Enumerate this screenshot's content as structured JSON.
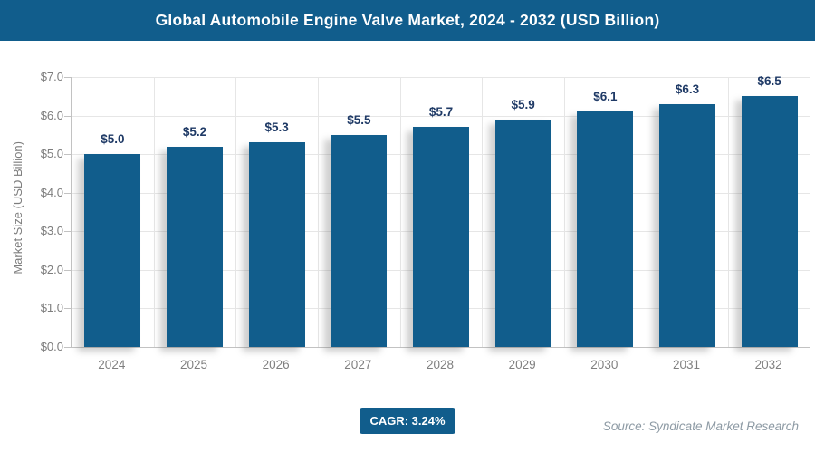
{
  "header": {
    "title": "Global Automobile Engine Valve Market, 2024 - 2032 (USD Billion)"
  },
  "chart_data": {
    "type": "bar",
    "title": "Global Automobile Engine Valve Market, 2024 - 2032 (USD Billion)",
    "categories": [
      "2024",
      "2025",
      "2026",
      "2027",
      "2028",
      "2029",
      "2030",
      "2031",
      "2032"
    ],
    "values": [
      5.0,
      5.2,
      5.3,
      5.5,
      5.7,
      5.9,
      6.1,
      6.3,
      6.5
    ],
    "data_labels": [
      "$5.0",
      "$5.2",
      "$5.3",
      "$5.5",
      "$5.7",
      "$5.9",
      "$6.1",
      "$6.3",
      "$6.5"
    ],
    "xlabel": "",
    "ylabel": "Market Size (USD Billion)",
    "ylim": [
      0,
      7
    ],
    "ytick_labels_top_down": [
      "$7.0",
      "$6.0",
      "$5.0",
      "$4.0",
      "$3.0",
      "$2.0",
      "$1.0",
      "$0.0"
    ],
    "grid": true,
    "legend_position": "none",
    "bar_color": "#115d8c"
  },
  "footer": {
    "cagr_label": "CAGR: 3.24%",
    "source": "Source: Syndicate Market Research"
  },
  "colors": {
    "header_bg": "#115d8c",
    "header_text": "#ffffff",
    "bar": "#115d8c",
    "value_label": "#1f3a66",
    "axis_text": "#7d7d7d",
    "gridline": "#e6e6e6",
    "axis_line": "#c2c2c2",
    "cagr_bg": "#115d8c",
    "source_text": "#8d9aa4"
  }
}
